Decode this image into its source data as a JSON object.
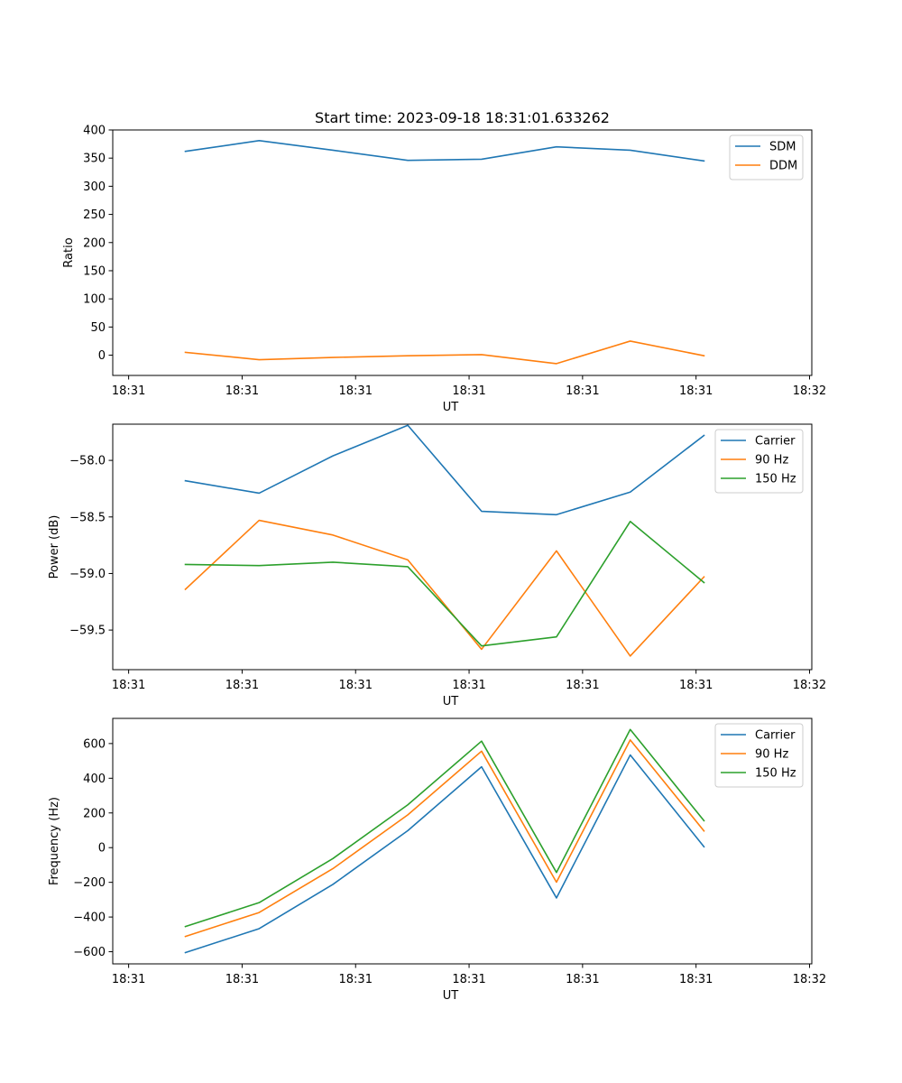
{
  "figure_title": "Start time: 2023-09-18 18:31:01.633262",
  "chart_data": [
    {
      "type": "line",
      "title": "Start time: 2023-09-18 18:31:01.633262",
      "xlabel": "UT",
      "ylabel": "Ratio",
      "x_ticks": [
        "18:31",
        "18:31",
        "18:31",
        "18:31",
        "18:31",
        "18:31",
        "18:32"
      ],
      "x_tick_values": [
        0,
        1,
        2,
        3,
        4,
        5,
        6
      ],
      "xlim": [
        -0.14,
        6.02
      ],
      "ylim": [
        -36,
        400
      ],
      "y_ticks": [
        0,
        50,
        100,
        150,
        200,
        250,
        300,
        350,
        400
      ],
      "y_tick_labels": [
        "0",
        "50",
        "100",
        "150",
        "200",
        "250",
        "300",
        "350",
        "400"
      ],
      "x": [
        0.5,
        1.15,
        1.8,
        2.46,
        3.11,
        3.77,
        4.42,
        5.07
      ],
      "series": [
        {
          "name": "SDM",
          "color": "#1f77b4",
          "values": [
            362,
            381,
            364,
            346,
            348,
            370,
            364,
            345
          ]
        },
        {
          "name": "DDM",
          "color": "#ff7f0e",
          "values": [
            5,
            -8,
            -4,
            -1,
            1,
            -15,
            25,
            -1
          ]
        }
      ],
      "legend": "top-right"
    },
    {
      "type": "line",
      "title": "",
      "xlabel": "UT",
      "ylabel": "Power (dB)",
      "x_ticks": [
        "18:31",
        "18:31",
        "18:31",
        "18:31",
        "18:31",
        "18:31",
        "18:32"
      ],
      "x_tick_values": [
        0,
        1,
        2,
        3,
        4,
        5,
        6
      ],
      "xlim": [
        -0.14,
        6.02
      ],
      "ylim": [
        -59.85,
        -57.68
      ],
      "y_ticks": [
        -58.0,
        -58.5,
        -59.0,
        -59.5
      ],
      "y_tick_labels": [
        "−58.0",
        "−58.5",
        "−59.0",
        "−59.5"
      ],
      "x": [
        0.5,
        1.15,
        1.8,
        2.46,
        3.11,
        3.77,
        4.42,
        5.07
      ],
      "series": [
        {
          "name": "Carrier",
          "color": "#1f77b4",
          "values": [
            -58.18,
            -58.29,
            -57.96,
            -57.69,
            -58.45,
            -58.48,
            -58.28,
            -57.78
          ]
        },
        {
          "name": "90 Hz",
          "color": "#ff7f0e",
          "values": [
            -59.14,
            -58.53,
            -58.66,
            -58.88,
            -59.67,
            -58.8,
            -59.73,
            -59.03
          ]
        },
        {
          "name": "150 Hz",
          "color": "#2ca02c",
          "values": [
            -58.92,
            -58.93,
            -58.9,
            -58.94,
            -59.64,
            -59.56,
            -58.54,
            -59.08
          ]
        }
      ],
      "legend": "top-right"
    },
    {
      "type": "line",
      "title": "",
      "xlabel": "UT",
      "ylabel": "Frequency (Hz)",
      "x_ticks": [
        "18:31",
        "18:31",
        "18:31",
        "18:31",
        "18:31",
        "18:31",
        "18:32"
      ],
      "x_tick_values": [
        0,
        1,
        2,
        3,
        4,
        5,
        6
      ],
      "xlim": [
        -0.14,
        6.02
      ],
      "ylim": [
        -670,
        745
      ],
      "y_ticks": [
        -600,
        -400,
        -200,
        0,
        200,
        400,
        600
      ],
      "y_tick_labels": [
        "−600",
        "−400",
        "−200",
        "0",
        "200",
        "400",
        "600"
      ],
      "x": [
        0.5,
        1.15,
        1.8,
        2.46,
        3.11,
        3.77,
        4.42,
        5.07
      ],
      "series": [
        {
          "name": "Carrier",
          "color": "#1f77b4",
          "values": [
            -605,
            -467,
            -212,
            98,
            466,
            -290,
            534,
            5
          ]
        },
        {
          "name": "90 Hz",
          "color": "#ff7f0e",
          "values": [
            -512,
            -374,
            -121,
            189,
            556,
            -199,
            621,
            96
          ]
        },
        {
          "name": "150 Hz",
          "color": "#2ca02c",
          "values": [
            -455,
            -317,
            -63,
            247,
            614,
            -143,
            681,
            155
          ]
        }
      ],
      "legend": "top-right"
    }
  ]
}
